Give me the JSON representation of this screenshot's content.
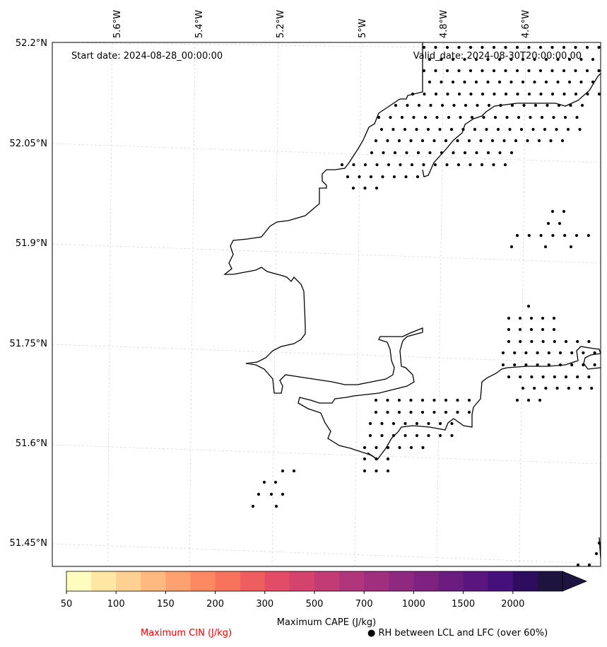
{
  "map": {
    "start_label": "Start date: 2024-08-28_00:00:00",
    "valid_label": "Valid_date: 2024-08-30T20:00:00.00",
    "lon_labels": [
      "5.6°W",
      "5.4°W",
      "5.2°W",
      "5°W",
      "4.8°W",
      "4.6°W"
    ],
    "lat_labels": [
      "52.2°N",
      "52.05°N",
      "51.9°N",
      "51.75°N",
      "51.6°N",
      "51.45°N"
    ],
    "gridlines": true,
    "coastline_color": "#000000",
    "stipple_meaning": "RH between LCL and LFC (over 60%)"
  },
  "colorbar": {
    "title": "Maximum CAPE (J/kg)",
    "levels": [
      50,
      100,
      150,
      200,
      300,
      500,
      700,
      1000,
      1500,
      2000
    ],
    "tick_labels": [
      "50",
      "100",
      "150",
      "200",
      "300",
      "500",
      "700",
      "1000",
      "1500",
      "2000"
    ],
    "colors": [
      "#fefdbf",
      "#fee7a3",
      "#fed092",
      "#feb97f",
      "#fea16e",
      "#fd8962",
      "#f8735c",
      "#ef5e5e",
      "#e24c66",
      "#d3436e",
      "#c23b75",
      "#b1357a",
      "#a02f7e",
      "#8e297f",
      "#7d237f",
      "#6b1c7f",
      "#5a167e",
      "#46107c",
      "#2f0d5e",
      "#1e1440"
    ],
    "extend": "max"
  },
  "footer": {
    "cin_label": "Maximum CIN (J/kg)",
    "cin_color": "#ff0000",
    "rh_marker": "●",
    "rh_label": "RH between LCL and LFC (over 60%)"
  }
}
